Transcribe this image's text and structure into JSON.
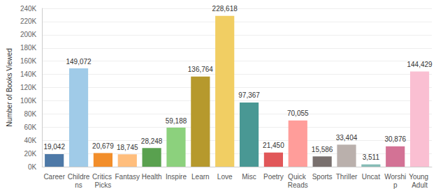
{
  "chart_data": {
    "type": "bar",
    "y_label": "Number of Books Viewed",
    "categories": [
      "Career",
      "Childrens",
      "Critics Picks",
      "Fantasy",
      "Health",
      "Inspire",
      "Learn",
      "Love",
      "Misc",
      "Poetry",
      "Quick Reads",
      "Sports",
      "Thriller",
      "Uncat",
      "Worship",
      "Young Adult"
    ],
    "values": [
      19042,
      149072,
      20679,
      18745,
      28248,
      59188,
      136764,
      228618,
      97367,
      21450,
      70055,
      15586,
      33404,
      3511,
      30876,
      144429
    ],
    "value_labels": [
      "19,042",
      "149,072",
      "20,679",
      "18,745",
      "28,248",
      "59,188",
      "136,764",
      "228,618",
      "97,367",
      "21,450",
      "70,055",
      "15,586",
      "33,404",
      "3,511",
      "30,876",
      "144,429"
    ],
    "colors": [
      "#4e79a7",
      "#a0cbe8",
      "#f28e2b",
      "#ffbe7d",
      "#59a14f",
      "#8cd17d",
      "#b6992d",
      "#f1ce63",
      "#499894",
      "#e15759",
      "#ff9d9a",
      "#79706e",
      "#bab0ac",
      "#86bcb6",
      "#d37295",
      "#fabfd2"
    ],
    "ylim": [
      0,
      240000
    ],
    "yticks": [
      {
        "value": 0,
        "label": "0K"
      },
      {
        "value": 20000,
        "label": "20K"
      },
      {
        "value": 40000,
        "label": "40K"
      },
      {
        "value": 60000,
        "label": "60K"
      },
      {
        "value": 80000,
        "label": "80K"
      },
      {
        "value": 100000,
        "label": "100K"
      },
      {
        "value": 120000,
        "label": "120K"
      },
      {
        "value": 140000,
        "label": "140K"
      },
      {
        "value": 160000,
        "label": "160K"
      },
      {
        "value": 180000,
        "label": "180K"
      },
      {
        "value": 200000,
        "label": "200K"
      },
      {
        "value": 220000,
        "label": "220K"
      },
      {
        "value": 240000,
        "label": "240K"
      }
    ],
    "grid": true,
    "data_labels": true
  }
}
